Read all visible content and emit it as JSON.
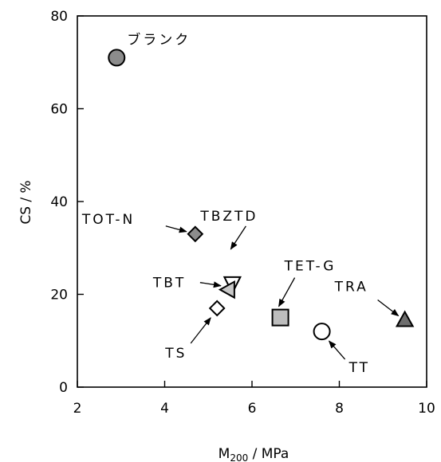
{
  "chart_data": {
    "type": "scatter",
    "title": "",
    "xlabel_main": "M",
    "xlabel_sub": "200",
    "xlabel_rest": " / MPa",
    "ylabel": "CS / %",
    "xlim": [
      2,
      10
    ],
    "ylim": [
      0,
      80
    ],
    "xticks": [
      2,
      4,
      6,
      8,
      10
    ],
    "yticks": [
      0,
      20,
      40,
      60,
      80
    ],
    "grid": false,
    "points": [
      {
        "label": "ブランク",
        "x": 2.9,
        "y": 71,
        "marker": "circle",
        "fill": "#8c8c8c"
      },
      {
        "label": "TOT-N",
        "x": 4.7,
        "y": 33,
        "marker": "diamond",
        "fill": "#8c8c8c"
      },
      {
        "label": "TBZTD",
        "x": 5.55,
        "y": 22,
        "marker": "triangle-down",
        "fill": "#ffffff"
      },
      {
        "label": "TBT",
        "x": 5.45,
        "y": 21,
        "marker": "triangle-left",
        "fill": "#c8c8c8"
      },
      {
        "label": "TS",
        "x": 5.2,
        "y": 17,
        "marker": "diamond",
        "fill": "#ffffff"
      },
      {
        "label": "TET-G",
        "x": 6.65,
        "y": 15,
        "marker": "square",
        "fill": "#bdbdbd"
      },
      {
        "label": "TT",
        "x": 7.6,
        "y": 12,
        "marker": "circle",
        "fill": "#ffffff"
      },
      {
        "label": "TRA",
        "x": 9.5,
        "y": 14.5,
        "marker": "triangle-up",
        "fill": "#6e6e6e"
      }
    ]
  }
}
